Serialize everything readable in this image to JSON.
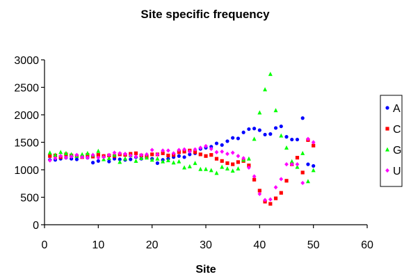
{
  "chart_data": {
    "type": "scatter",
    "title": "Site specific frequency",
    "xlabel": "Site",
    "ylabel": "",
    "xlim": [
      0,
      60
    ],
    "ylim": [
      0,
      3000
    ],
    "xticks": [
      0,
      10,
      20,
      30,
      40,
      50,
      60
    ],
    "yticks": [
      0,
      500,
      1000,
      1500,
      2000,
      2500,
      3000
    ],
    "grid": false,
    "legend_position": "right",
    "series": [
      {
        "name": "A",
        "color": "#0000ff",
        "marker": "circle",
        "x": [
          1,
          2,
          3,
          4,
          5,
          6,
          7,
          8,
          9,
          10,
          11,
          12,
          13,
          14,
          15,
          16,
          17,
          18,
          19,
          20,
          21,
          22,
          23,
          24,
          25,
          26,
          27,
          28,
          29,
          30,
          31,
          32,
          33,
          34,
          35,
          36,
          37,
          38,
          39,
          40,
          41,
          42,
          43,
          44,
          45,
          46,
          47,
          48,
          49,
          50
        ],
        "y": [
          1180,
          1180,
          1200,
          1220,
          1200,
          1190,
          1250,
          1220,
          1130,
          1160,
          1250,
          1150,
          1200,
          1190,
          1180,
          1190,
          1230,
          1200,
          1240,
          1200,
          1120,
          1180,
          1200,
          1230,
          1250,
          1230,
          1280,
          1300,
          1380,
          1400,
          1420,
          1480,
          1450,
          1520,
          1580,
          1570,
          1680,
          1740,
          1750,
          1720,
          1640,
          1650,
          1760,
          1790,
          1600,
          1550,
          1550,
          1940,
          1100,
          1070
        ]
      },
      {
        "name": "C",
        "color": "#ff0000",
        "marker": "square",
        "x": [
          1,
          2,
          3,
          4,
          5,
          6,
          7,
          8,
          9,
          10,
          11,
          12,
          13,
          14,
          15,
          16,
          17,
          18,
          19,
          20,
          21,
          22,
          23,
          24,
          25,
          26,
          27,
          28,
          29,
          30,
          31,
          32,
          33,
          34,
          35,
          36,
          37,
          38,
          39,
          40,
          41,
          42,
          43,
          44,
          45,
          46,
          47,
          48,
          49,
          50
        ],
        "y": [
          1250,
          1260,
          1230,
          1280,
          1260,
          1250,
          1230,
          1270,
          1240,
          1270,
          1250,
          1260,
          1250,
          1280,
          1270,
          1290,
          1300,
          1260,
          1240,
          1280,
          1280,
          1300,
          1260,
          1270,
          1320,
          1330,
          1350,
          1320,
          1280,
          1250,
          1270,
          1200,
          1160,
          1120,
          1100,
          1140,
          1160,
          1080,
          820,
          620,
          420,
          380,
          480,
          580,
          800,
          1100,
          1220,
          950,
          1540,
          1440
        ]
      },
      {
        "name": "G",
        "color": "#00ff00",
        "marker": "triangle",
        "x": [
          1,
          2,
          3,
          4,
          5,
          6,
          7,
          8,
          9,
          10,
          11,
          12,
          13,
          14,
          15,
          16,
          17,
          18,
          19,
          20,
          21,
          22,
          23,
          24,
          25,
          26,
          27,
          28,
          29,
          30,
          31,
          32,
          33,
          34,
          35,
          36,
          37,
          38,
          39,
          40,
          41,
          42,
          43,
          44,
          45,
          46,
          47,
          48,
          49,
          50
        ],
        "y": [
          1310,
          1270,
          1320,
          1300,
          1280,
          1250,
          1280,
          1300,
          1270,
          1340,
          1190,
          1210,
          1270,
          1140,
          1200,
          1260,
          1160,
          1210,
          1220,
          1180,
          1200,
          1150,
          1170,
          1130,
          1150,
          1040,
          1060,
          1120,
          1010,
          1010,
          990,
          940,
          1050,
          1020,
          980,
          1020,
          1180,
          1200,
          1560,
          2040,
          2460,
          2740,
          2080,
          1620,
          1400,
          1150,
          1050,
          1300,
          790,
          990
        ]
      },
      {
        "name": "U",
        "color": "#ff00ff",
        "marker": "diamond",
        "x": [
          1,
          2,
          3,
          4,
          5,
          6,
          7,
          8,
          9,
          10,
          11,
          12,
          13,
          14,
          15,
          16,
          17,
          18,
          19,
          20,
          21,
          22,
          23,
          24,
          25,
          26,
          27,
          28,
          29,
          30,
          31,
          32,
          33,
          34,
          35,
          36,
          37,
          38,
          39,
          40,
          41,
          42,
          43,
          44,
          45,
          46,
          47,
          48,
          49,
          50
        ],
        "y": [
          1170,
          1210,
          1250,
          1220,
          1240,
          1270,
          1230,
          1220,
          1270,
          1220,
          1230,
          1270,
          1310,
          1300,
          1290,
          1260,
          1240,
          1270,
          1280,
          1360,
          1280,
          1350,
          1350,
          1300,
          1360,
          1370,
          1330,
          1370,
          1400,
          1430,
          1380,
          1320,
          1330,
          1290,
          1310,
          1250,
          1210,
          1040,
          880,
          560,
          450,
          460,
          680,
          830,
          1100,
          1100,
          1100,
          760,
          1560,
          1500
        ]
      }
    ]
  }
}
